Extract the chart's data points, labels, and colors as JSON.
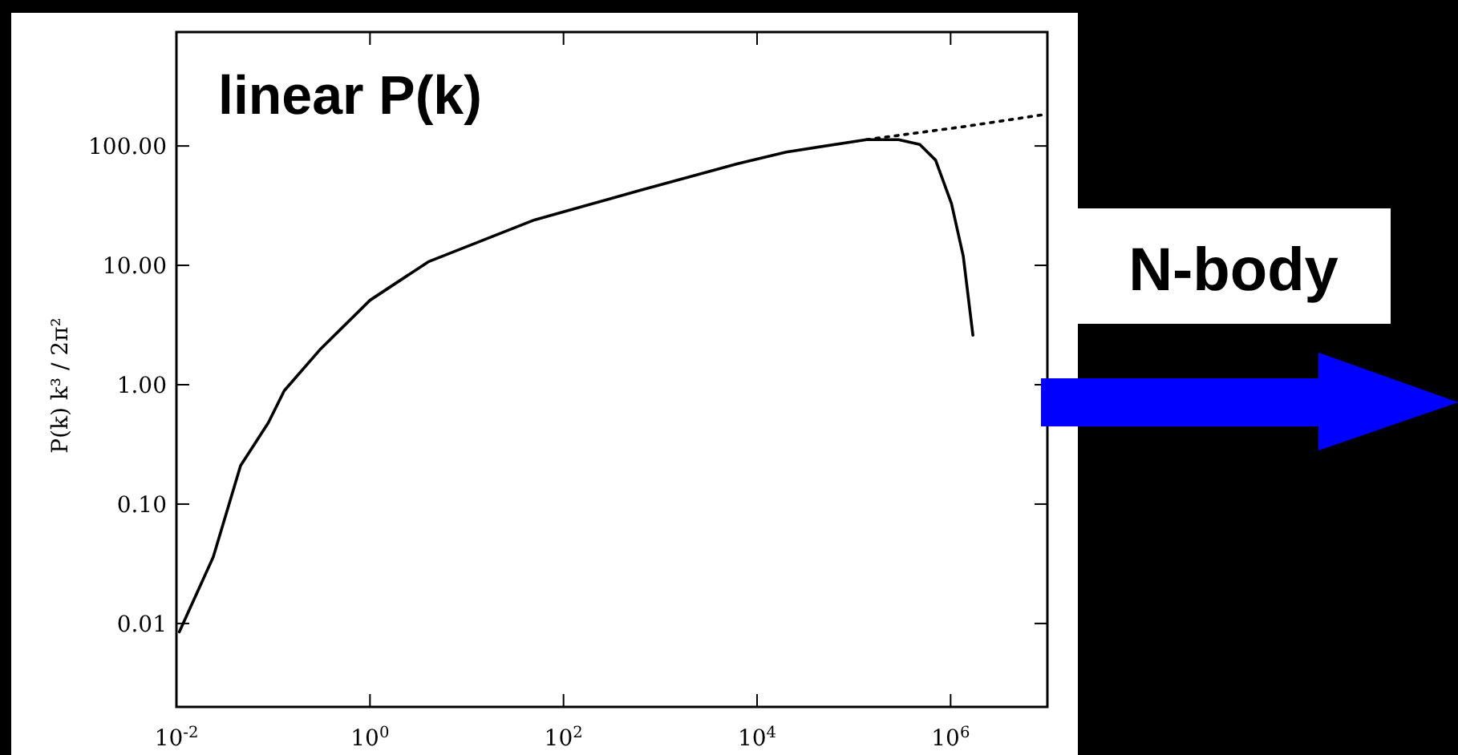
{
  "chart_data": {
    "type": "line",
    "title": "linear P(k)",
    "ylabel": "P(k) k³ / 2π²",
    "annotations": [
      "N-body"
    ],
    "log": "xy",
    "grid": false,
    "xlim": [
      0.01,
      10000000
    ],
    "ylim": [
      0.002,
      900
    ],
    "xticks": [
      {
        "value": 0.01,
        "label": "10$^{-2}$"
      },
      {
        "value": 1,
        "label": "10$^{0}$"
      },
      {
        "value": 100,
        "label": "10$^{2}$"
      },
      {
        "value": 10000,
        "label": "10$^{4}$"
      },
      {
        "value": 1000000,
        "label": "10$^{6}$"
      }
    ],
    "yticks": [
      {
        "value": 0.01,
        "label": "0.01"
      },
      {
        "value": 0.1,
        "label": "0.10"
      },
      {
        "value": 1,
        "label": "1.00"
      },
      {
        "value": 10,
        "label": "10.00"
      },
      {
        "value": 100,
        "label": "100.00"
      }
    ],
    "series": [
      {
        "color": "#000000",
        "line_style": "solid",
        "x": [
          0.0107,
          0.024,
          0.046,
          0.089,
          0.13,
          0.31,
          1,
          4,
          50,
          650,
          6300,
          20000,
          135000,
          290000,
          480000,
          700000,
          1020000,
          1350000,
          1700000
        ],
        "values": [
          0.0085,
          0.036,
          0.21,
          0.48,
          0.89,
          2.0,
          5.1,
          10.7,
          24,
          43,
          71,
          89,
          113,
          113,
          103,
          76,
          33,
          12,
          2.6
        ]
      },
      {
        "color": "#000000",
        "line_style": "dotted",
        "x": [
          135000,
          1350000,
          10000000
        ],
        "values": [
          113,
          145,
          185
        ]
      }
    ]
  }
}
